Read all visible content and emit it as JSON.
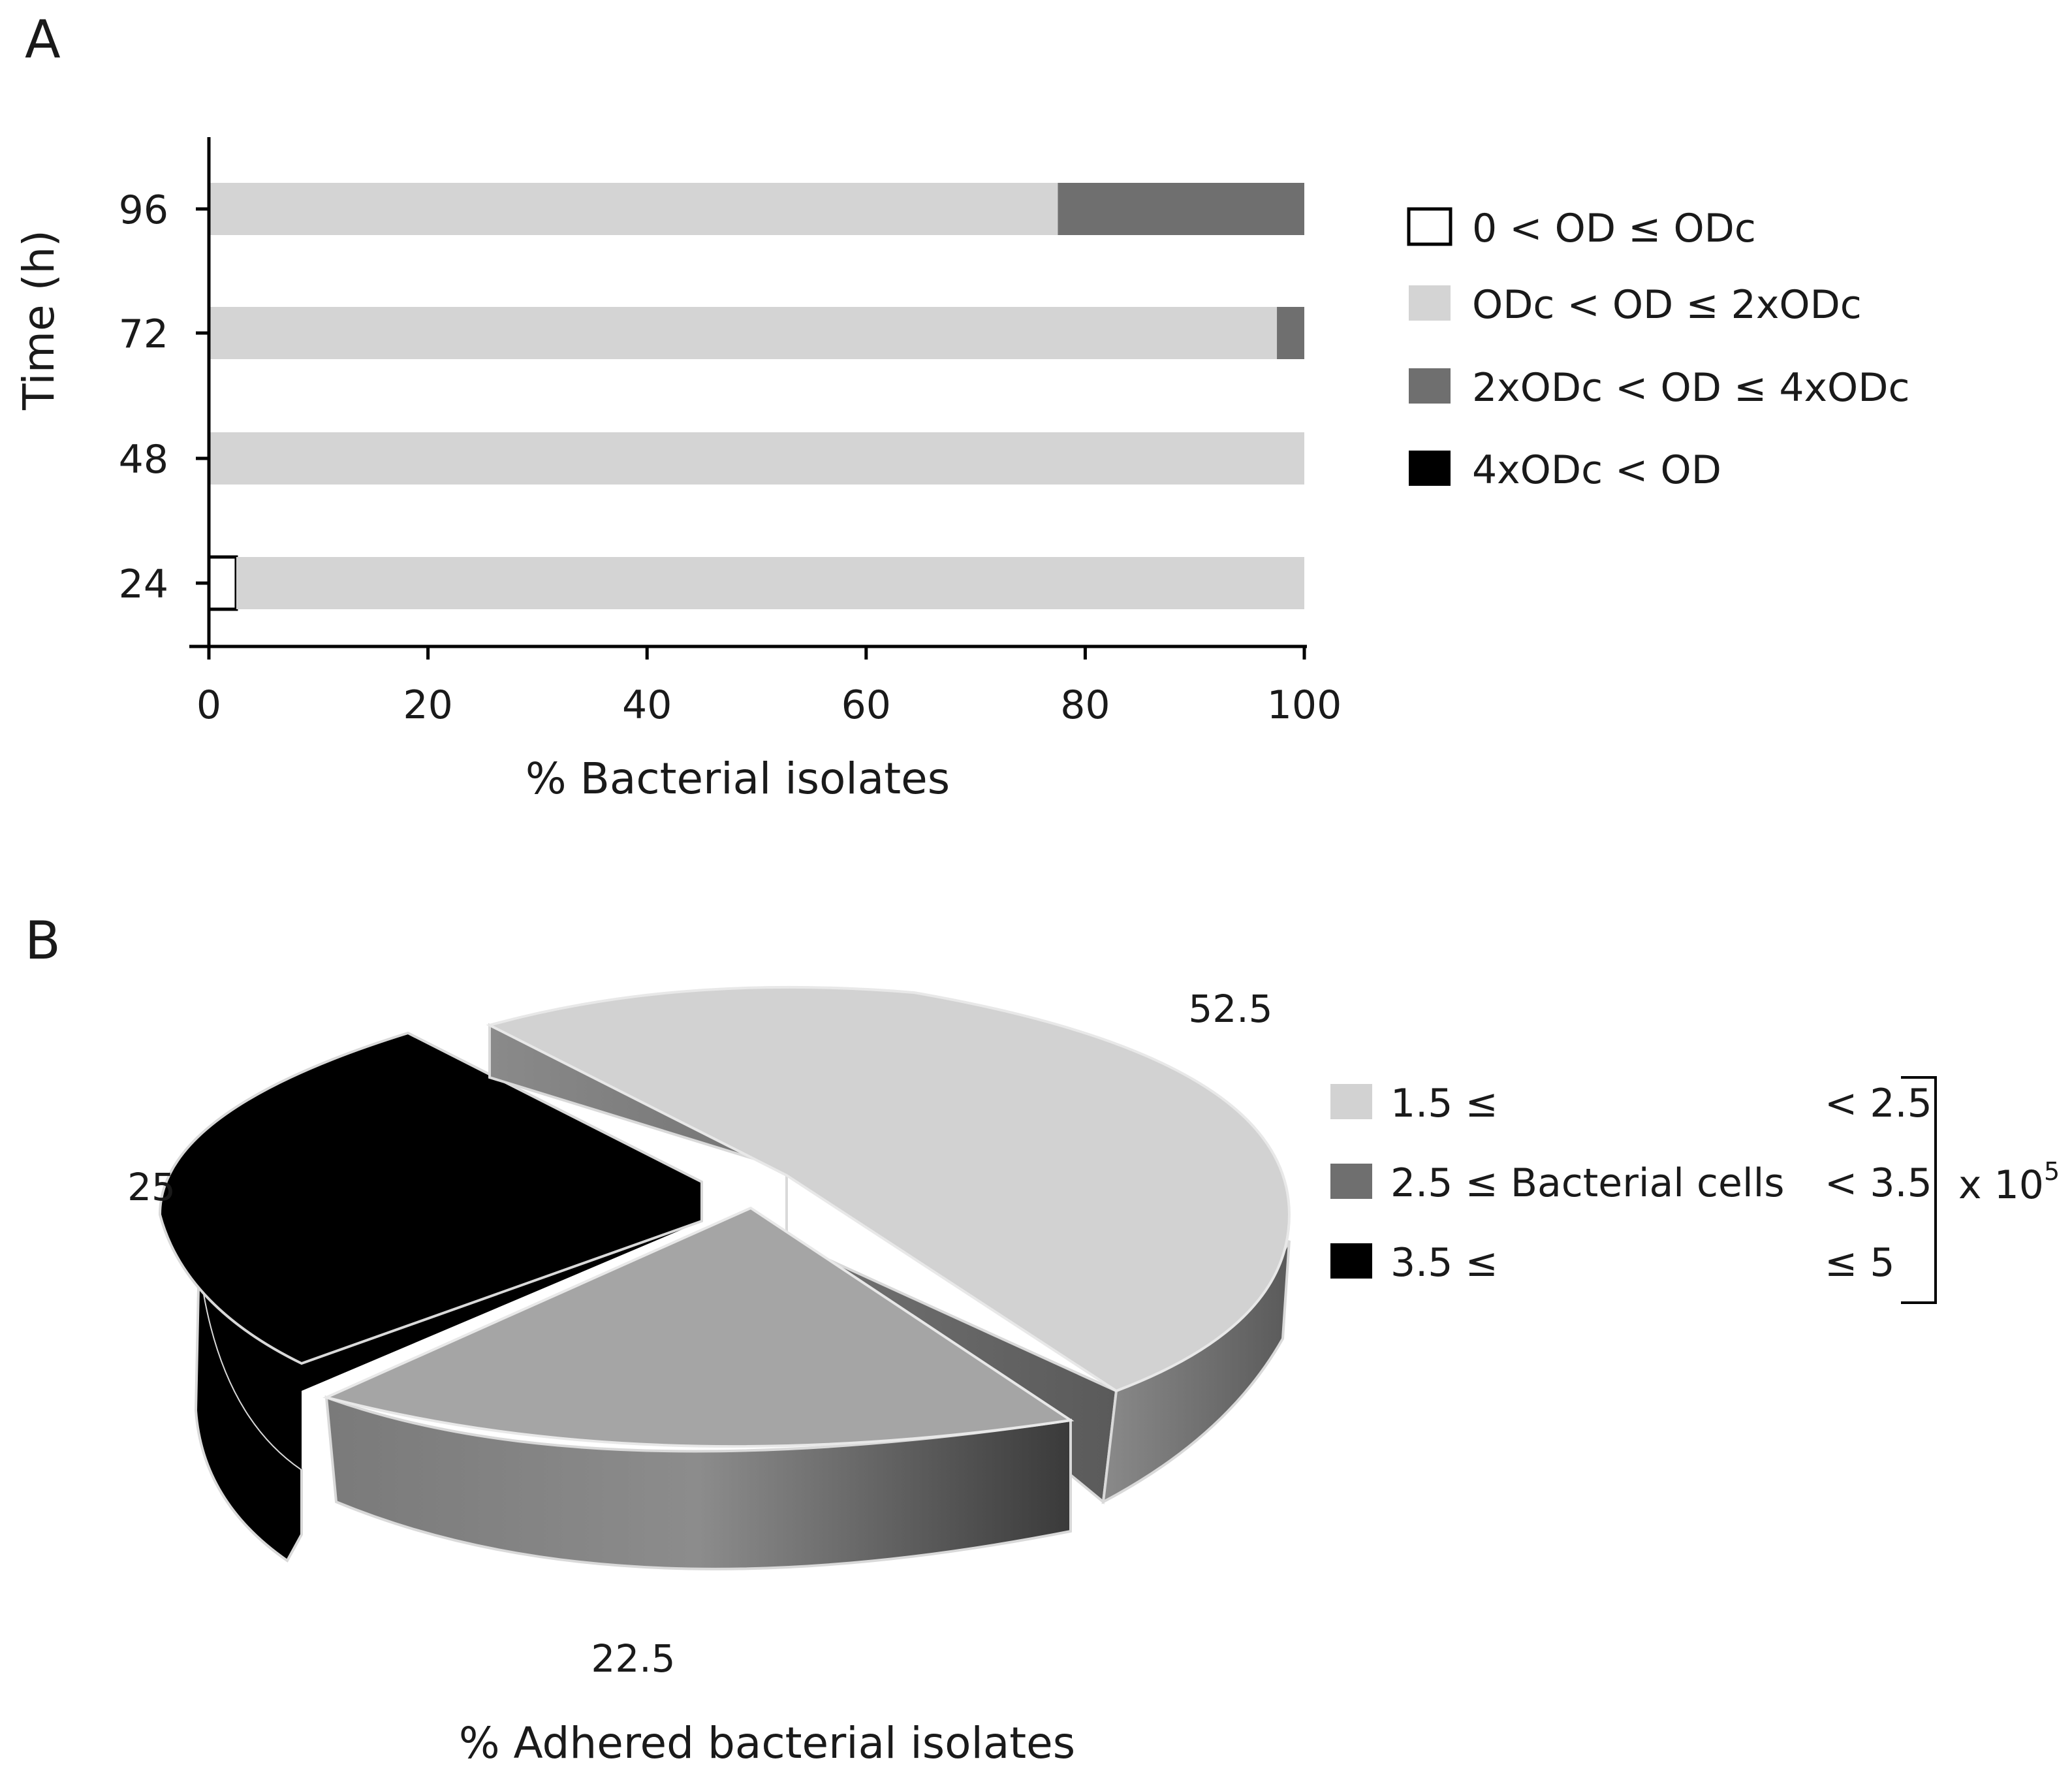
{
  "panels": {
    "a_label": "A",
    "b_label": "B"
  },
  "chart_data": [
    {
      "type": "bar",
      "orientation": "horizontal",
      "stacked": true,
      "categories": [
        "24",
        "48",
        "72",
        "96"
      ],
      "series": [
        {
          "name": "0 < OD ≤ ODc",
          "color": "#ffffff",
          "values": [
            2.5,
            0,
            0,
            0
          ]
        },
        {
          "name": "ODc < OD ≤ 2xODc",
          "color": "#d4d4d4",
          "values": [
            97.5,
            100,
            97.5,
            77.5
          ]
        },
        {
          "name": "2xODc < OD ≤ 4xODc",
          "color": "#6f6f6f",
          "values": [
            0,
            0,
            2.5,
            22.5
          ]
        },
        {
          "name": "4xODc < OD",
          "color": "#000000",
          "values": [
            0,
            0,
            0,
            0
          ]
        }
      ],
      "xlabel": "% Bacterial isolates",
      "ylabel": "Time (h)",
      "xlim": [
        0,
        100
      ],
      "xticks": [
        "0",
        "20",
        "40",
        "60",
        "80",
        "100"
      ],
      "grid": false,
      "legend_position": "right"
    },
    {
      "type": "pie",
      "style": "3d-exploded",
      "slices": [
        {
          "label": "1.5 ≤",
          "upper": "< 2.5",
          "value": 52.5,
          "value_label": "52.5",
          "color": "#d2d2d2"
        },
        {
          "label": "2.5 ≤ Bacterial cells",
          "upper": "< 3.5",
          "value": 22.5,
          "value_label": "22.5",
          "color": "#a5a5a5"
        },
        {
          "label": "3.5 ≤",
          "upper": "≤ 5",
          "value": 25,
          "value_label": "25",
          "color": "#000000"
        }
      ],
      "legend_multiplier": "x 10",
      "legend_exponent": "5",
      "xlabel": "% Adhered bacterial isolates",
      "legend_position": "right"
    }
  ]
}
